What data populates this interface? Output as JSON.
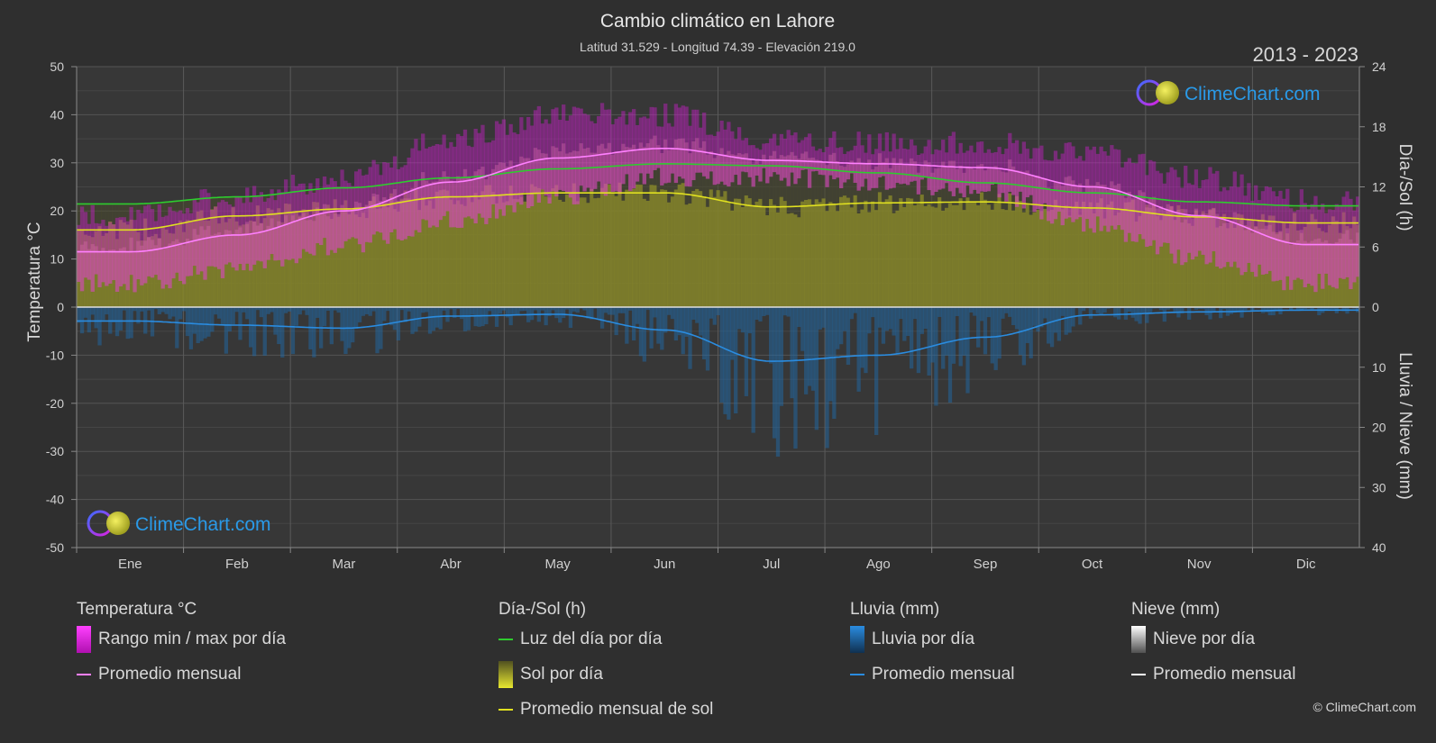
{
  "chart_data": {
    "type": "area",
    "title": "Cambio climático en Lahore",
    "subtitle": "Latitud 31.529 - Longitud 74.39 - Elevación 219.0",
    "period": "2013 - 2023",
    "categories": [
      "Ene",
      "Feb",
      "Mar",
      "Abr",
      "May",
      "Jun",
      "Jul",
      "Ago",
      "Sep",
      "Oct",
      "Nov",
      "Dic"
    ],
    "y_left": {
      "label": "Temperatura °C",
      "ticks": [
        50,
        40,
        30,
        20,
        10,
        0,
        -10,
        -20,
        -30,
        -40,
        -50
      ],
      "range": [
        -50,
        50
      ]
    },
    "y_right_top": {
      "label": "Día-/Sol (h)",
      "ticks": [
        24,
        18,
        12,
        6,
        0
      ],
      "range": [
        0,
        24
      ]
    },
    "y_right_bottom": {
      "label": "Lluvia / Nieve (mm)",
      "ticks": [
        0,
        10,
        20,
        30,
        40
      ],
      "range": [
        0,
        40
      ]
    },
    "series": [
      {
        "name": "Rango min / max por día",
        "kind": "range",
        "color": "#d020d0",
        "min": [
          5,
          8,
          13,
          18,
          23,
          27,
          27,
          26,
          24,
          17,
          10,
          5
        ],
        "max": [
          19,
          23,
          27,
          35,
          40,
          40,
          35,
          34,
          34,
          32,
          27,
          22
        ]
      },
      {
        "name": "Promedio mensual",
        "kind": "temp_avg",
        "color": "#ff80ff",
        "values": [
          11.5,
          15,
          20,
          26,
          31,
          33,
          30.5,
          29.8,
          29,
          25,
          19,
          13
        ]
      },
      {
        "name": "Luz del día por día",
        "kind": "daylight",
        "color": "#2ecc2e",
        "values": [
          10.3,
          11.0,
          11.9,
          12.9,
          13.8,
          14.3,
          14.1,
          13.4,
          12.4,
          11.4,
          10.5,
          10.1
        ]
      },
      {
        "name": "Sol por día",
        "kind": "sun_area",
        "color": "#a8a830"
      },
      {
        "name": "Promedio mensual de sol",
        "kind": "sun_avg",
        "color": "#e0e020",
        "values": [
          7.7,
          9.1,
          9.8,
          11.0,
          11.4,
          11.4,
          10.0,
          10.4,
          10.5,
          9.9,
          9.0,
          8.4
        ]
      },
      {
        "name": "Lluvia por día",
        "kind": "rain_area",
        "color": "#1f78c8"
      },
      {
        "name": "Promedio mensual",
        "kind": "rain_avg",
        "color": "#2a8ce0",
        "values": [
          2.3,
          3.0,
          3.5,
          1.5,
          1.2,
          3.8,
          9.0,
          8.0,
          5.0,
          1.3,
          0.8,
          0.5
        ]
      },
      {
        "name": "Nieve por día",
        "kind": "snow_area",
        "color": "#d0d0d0"
      },
      {
        "name": "Promedio mensual",
        "kind": "snow_avg",
        "color": "#ffffff",
        "values": [
          0,
          0,
          0,
          0,
          0,
          0,
          0,
          0,
          0,
          0,
          0,
          0
        ]
      }
    ]
  },
  "brand": {
    "name": "ClimeChart.com",
    "copyright": "© ClimeChart.com"
  },
  "legend": {
    "temp": {
      "title": "Temperatura °C",
      "range": "Rango min / max por día",
      "avg": "Promedio mensual"
    },
    "sun": {
      "title": "Día-/Sol (h)",
      "daylight": "Luz del día por día",
      "sun": "Sol por día",
      "sun_avg": "Promedio mensual de sol"
    },
    "rain": {
      "title": "Lluvia (mm)",
      "rain": "Lluvia por día",
      "avg": "Promedio mensual"
    },
    "snow": {
      "title": "Nieve (mm)",
      "snow": "Nieve por día",
      "avg": "Promedio mensual"
    }
  }
}
